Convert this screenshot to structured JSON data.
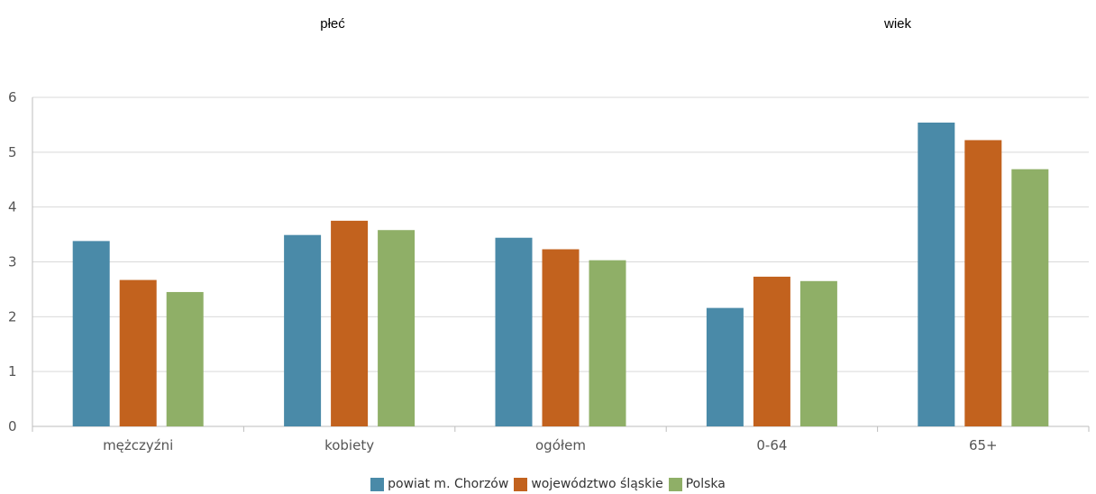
{
  "groups": [
    {
      "label": "płeć"
    },
    {
      "label": "wiek"
    }
  ],
  "chart_data": {
    "type": "bar",
    "categories": [
      "mężczyźni",
      "kobiety",
      "ogółem",
      "0-64",
      "65+"
    ],
    "series": [
      {
        "name": "powiat m. Chorzów",
        "color": "#4a8aa8",
        "values": [
          3.38,
          3.49,
          3.44,
          2.16,
          5.54
        ]
      },
      {
        "name": "województwo śląskie",
        "color": "#c2621e",
        "values": [
          2.67,
          3.75,
          3.23,
          2.73,
          5.22
        ]
      },
      {
        "name": "Polska",
        "color": "#8faf67",
        "values": [
          2.45,
          3.58,
          3.03,
          2.65,
          4.69
        ]
      }
    ],
    "ylim": [
      0,
      6
    ],
    "yticks": [
      "0",
      "1",
      "2",
      "3",
      "4",
      "5",
      "6"
    ],
    "grid": true,
    "legend": "bottom"
  }
}
